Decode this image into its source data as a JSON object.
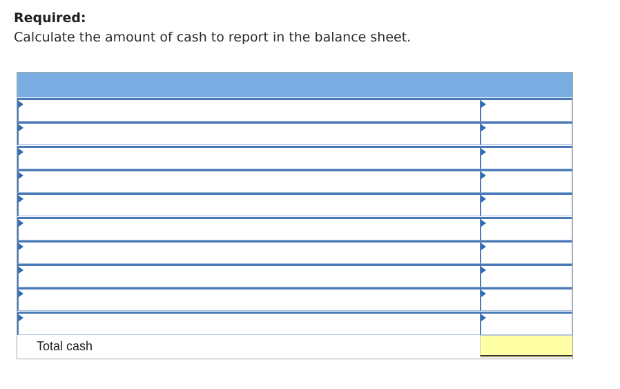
{
  "question": {
    "heading": "Required:",
    "instruction": "Calculate the amount of cash to report in the balance sheet."
  },
  "worksheet": {
    "header_color": "#7aaee3",
    "border_color": "#4b79b6",
    "rows": [
      {
        "label": "",
        "amount": ""
      },
      {
        "label": "",
        "amount": ""
      },
      {
        "label": "",
        "amount": ""
      },
      {
        "label": "",
        "amount": ""
      },
      {
        "label": "",
        "amount": ""
      },
      {
        "label": "",
        "amount": ""
      },
      {
        "label": "",
        "amount": ""
      },
      {
        "label": "",
        "amount": ""
      },
      {
        "label": "",
        "amount": ""
      },
      {
        "label": "",
        "amount": ""
      }
    ],
    "total": {
      "label": "Total cash",
      "amount": "",
      "fill_color": "#ffffa6"
    }
  }
}
